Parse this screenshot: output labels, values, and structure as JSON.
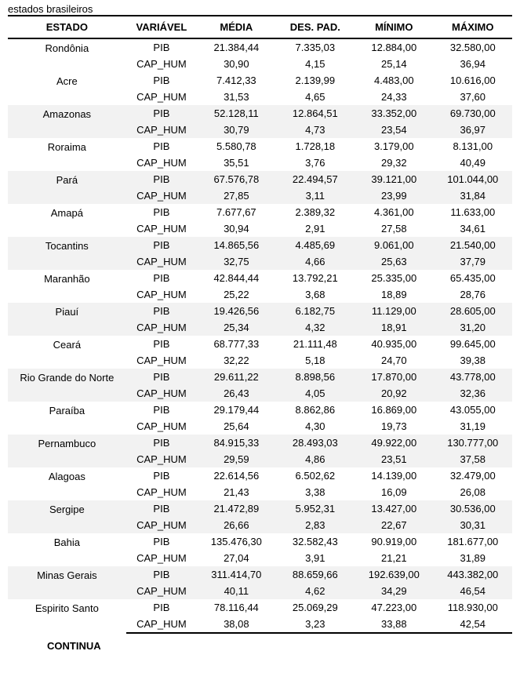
{
  "caption": "estados brasileiros",
  "headers": {
    "estado": "ESTADO",
    "variavel": "VARIÁVEL",
    "media": "MÉDIA",
    "despad": "DES. PAD.",
    "minimo": "MÍNIMO",
    "maximo": "MÁXIMO"
  },
  "labels": {
    "pib": "PIB",
    "caphum": "CAP_HUM",
    "continua": "CONTINUA"
  },
  "rows": [
    {
      "estado": "Rondônia",
      "alt": false,
      "pib": {
        "media": "21.384,44",
        "dp": "7.335,03",
        "min": "12.884,00",
        "max": "32.580,00"
      },
      "caphum": {
        "media": "30,90",
        "dp": "4,15",
        "min": "25,14",
        "max": "36,94"
      }
    },
    {
      "estado": "Acre",
      "alt": false,
      "pib": {
        "media": "7.412,33",
        "dp": "2.139,99",
        "min": "4.483,00",
        "max": "10.616,00"
      },
      "caphum": {
        "media": "31,53",
        "dp": "4,65",
        "min": "24,33",
        "max": "37,60"
      }
    },
    {
      "estado": "Amazonas",
      "alt": true,
      "pib": {
        "media": "52.128,11",
        "dp": "12.864,51",
        "min": "33.352,00",
        "max": "69.730,00"
      },
      "caphum": {
        "media": "30,79",
        "dp": "4,73",
        "min": "23,54",
        "max": "36,97"
      }
    },
    {
      "estado": "Roraima",
      "alt": false,
      "pib": {
        "media": "5.580,78",
        "dp": "1.728,18",
        "min": "3.179,00",
        "max": "8.131,00"
      },
      "caphum": {
        "media": "35,51",
        "dp": "3,76",
        "min": "29,32",
        "max": "40,49"
      }
    },
    {
      "estado": "Pará",
      "alt": true,
      "pib": {
        "media": "67.576,78",
        "dp": "22.494,57",
        "min": "39.121,00",
        "max": "101.044,00"
      },
      "caphum": {
        "media": "27,85",
        "dp": "3,11",
        "min": "23,99",
        "max": "31,84"
      }
    },
    {
      "estado": "Amapá",
      "alt": false,
      "pib": {
        "media": "7.677,67",
        "dp": "2.389,32",
        "min": "4.361,00",
        "max": "11.633,00"
      },
      "caphum": {
        "media": "30,94",
        "dp": "2,91",
        "min": "27,58",
        "max": "34,61"
      }
    },
    {
      "estado": "Tocantins",
      "alt": true,
      "pib": {
        "media": "14.865,56",
        "dp": "4.485,69",
        "min": "9.061,00",
        "max": "21.540,00"
      },
      "caphum": {
        "media": "32,75",
        "dp": "4,66",
        "min": "25,63",
        "max": "37,79"
      }
    },
    {
      "estado": "Maranhão",
      "alt": false,
      "pib": {
        "media": "42.844,44",
        "dp": "13.792,21",
        "min": "25.335,00",
        "max": "65.435,00"
      },
      "caphum": {
        "media": "25,22",
        "dp": "3,68",
        "min": "18,89",
        "max": "28,76"
      }
    },
    {
      "estado": "Piauí",
      "alt": true,
      "pib": {
        "media": "19.426,56",
        "dp": "6.182,75",
        "min": "11.129,00",
        "max": "28.605,00"
      },
      "caphum": {
        "media": "25,34",
        "dp": "4,32",
        "min": "18,91",
        "max": "31,20"
      }
    },
    {
      "estado": "Ceará",
      "alt": false,
      "pib": {
        "media": "68.777,33",
        "dp": "21.111,48",
        "min": "40.935,00",
        "max": "99.645,00"
      },
      "caphum": {
        "media": "32,22",
        "dp": "5,18",
        "min": "24,70",
        "max": "39,38"
      }
    },
    {
      "estado": "Rio Grande do Norte",
      "alt": true,
      "pib": {
        "media": "29.611,22",
        "dp": "8.898,56",
        "min": "17.870,00",
        "max": "43.778,00"
      },
      "caphum": {
        "media": "26,43",
        "dp": "4,05",
        "min": "20,92",
        "max": "32,36"
      }
    },
    {
      "estado": "Paraíba",
      "alt": false,
      "pib": {
        "media": "29.179,44",
        "dp": "8.862,86",
        "min": "16.869,00",
        "max": "43.055,00"
      },
      "caphum": {
        "media": "25,64",
        "dp": "4,30",
        "min": "19,73",
        "max": "31,19"
      }
    },
    {
      "estado": "Pernambuco",
      "alt": true,
      "pib": {
        "media": "84.915,33",
        "dp": "28.493,03",
        "min": "49.922,00",
        "max": "130.777,00"
      },
      "caphum": {
        "media": "29,59",
        "dp": "4,86",
        "min": "23,51",
        "max": "37,58"
      }
    },
    {
      "estado": "Alagoas",
      "alt": false,
      "pib": {
        "media": "22.614,56",
        "dp": "6.502,62",
        "min": "14.139,00",
        "max": "32.479,00"
      },
      "caphum": {
        "media": "21,43",
        "dp": "3,38",
        "min": "16,09",
        "max": "26,08"
      }
    },
    {
      "estado": "Sergipe",
      "alt": true,
      "pib": {
        "media": "21.472,89",
        "dp": "5.952,31",
        "min": "13.427,00",
        "max": "30.536,00"
      },
      "caphum": {
        "media": "26,66",
        "dp": "2,83",
        "min": "22,67",
        "max": "30,31"
      }
    },
    {
      "estado": "Bahia",
      "alt": false,
      "pib": {
        "media": "135.476,30",
        "dp": "32.582,43",
        "min": "90.919,00",
        "max": "181.677,00"
      },
      "caphum": {
        "media": "27,04",
        "dp": "3,91",
        "min": "21,21",
        "max": "31,89"
      }
    },
    {
      "estado": "Minas Gerais",
      "alt": true,
      "pib": {
        "media": "311.414,70",
        "dp": "88.659,66",
        "min": "192.639,00",
        "max": "443.382,00"
      },
      "caphum": {
        "media": "40,11",
        "dp": "4,62",
        "min": "34,29",
        "max": "46,54"
      }
    },
    {
      "estado": "Espirito Santo",
      "alt": false,
      "pib": {
        "media": "78.116,44",
        "dp": "25.069,29",
        "min": "47.223,00",
        "max": "118.930,00"
      },
      "caphum": {
        "media": "38,08",
        "dp": "3,23",
        "min": "33,88",
        "max": "42,54"
      }
    }
  ],
  "colors": {
    "alt_bg": "#f2f2f2",
    "border": "#000000",
    "text": "#000000",
    "bg": "#ffffff"
  },
  "fontsize": {
    "body": 13,
    "header": 13
  }
}
